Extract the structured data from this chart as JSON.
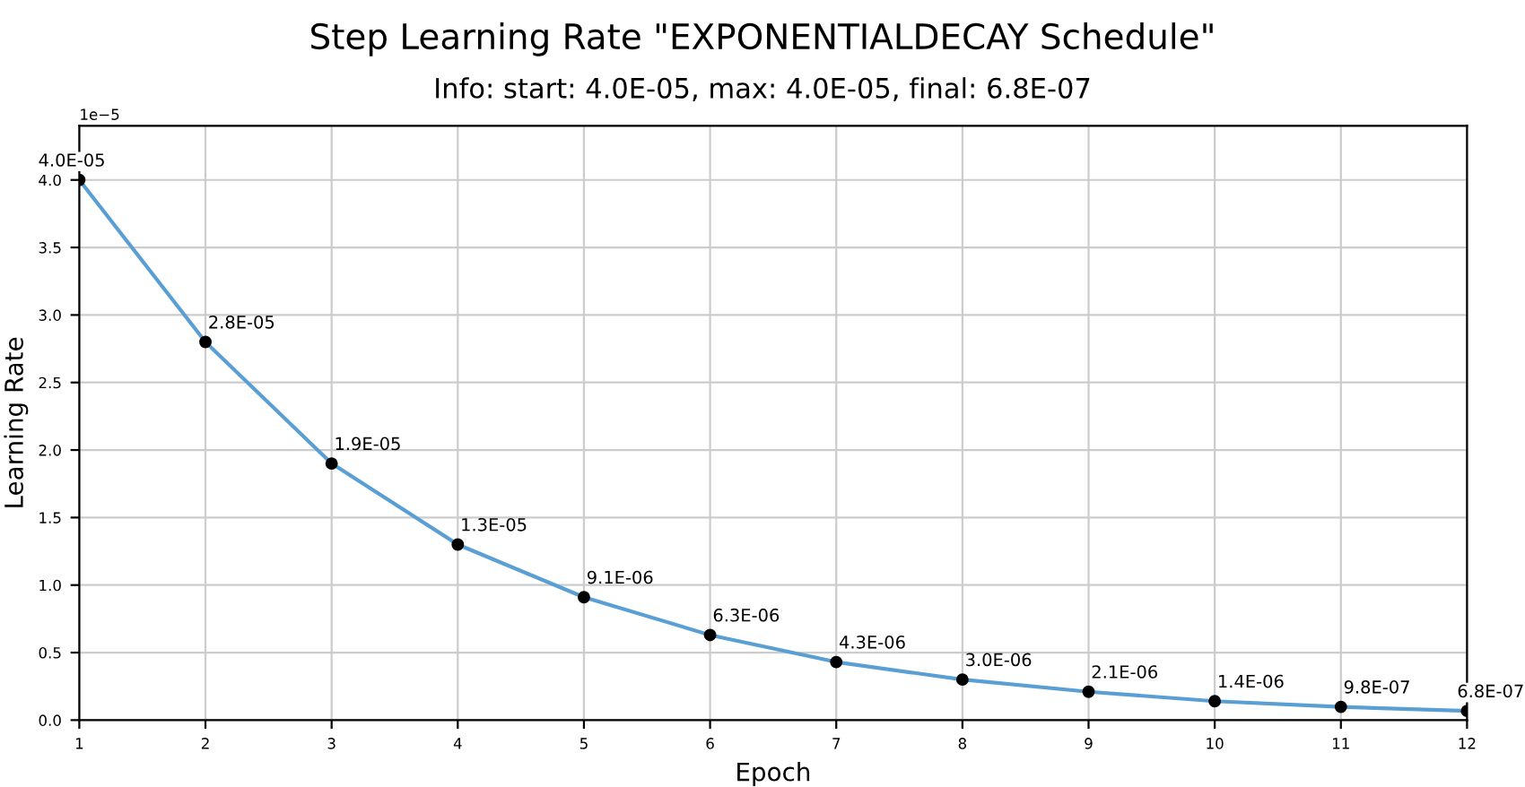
{
  "chart_data": {
    "type": "line",
    "title": "Step Learning Rate \"EXPONENTIALDECAY Schedule\"",
    "subtitle": "Info: start: 4.0E-05, max: 4.0E-05, final: 6.8E-07",
    "xlabel": "Epoch",
    "ylabel": "Learning Rate",
    "x": [
      1,
      2,
      3,
      4,
      5,
      6,
      7,
      8,
      9,
      10,
      11,
      12
    ],
    "series": [
      {
        "color": "#5a9fd4",
        "values": [
          4.0,
          2.8,
          1.9,
          1.3,
          0.91,
          0.63,
          0.43,
          0.3,
          0.21,
          0.14,
          0.098,
          0.068
        ]
      }
    ],
    "xlim": [
      1,
      12
    ],
    "xticks": [
      1,
      2,
      3,
      4,
      5,
      6,
      7,
      8,
      9,
      10,
      11,
      12
    ],
    "ylim": [
      0,
      4.4
    ],
    "yticks": [
      {
        "value": 0,
        "label": "0.0"
      },
      0.5,
      {
        "value": 1,
        "label": "1.0"
      },
      1.5,
      {
        "value": 2,
        "label": "2.0"
      },
      2.5,
      {
        "value": 3,
        "label": "3.0"
      },
      3.5,
      {
        "value": 4,
        "label": "4.0"
      }
    ],
    "annotations": [
      "1e−5",
      {
        "text": "4.0E-05",
        "x": 1,
        "y": 4.0
      },
      {
        "text": "2.8E-05",
        "x": 2,
        "y": 2.8
      },
      {
        "text": "1.9E-05",
        "x": 3,
        "y": 1.9
      },
      {
        "text": "1.3E-05",
        "x": 4,
        "y": 1.3
      },
      {
        "text": "9.1E-06",
        "x": 5,
        "y": 0.91
      },
      {
        "text": "6.3E-06",
        "x": 6,
        "y": 0.63
      },
      {
        "text": "4.3E-06",
        "x": 7,
        "y": 0.43
      },
      {
        "text": "3.0E-06",
        "x": 8,
        "y": 0.3
      },
      {
        "text": "2.1E-06",
        "x": 9,
        "y": 0.21
      },
      {
        "text": "1.4E-06",
        "x": 10,
        "y": 0.14
      },
      {
        "text": "9.8E-07",
        "x": 11,
        "y": 0.098
      },
      {
        "text": "6.8E-07",
        "x": 12,
        "y": 0.068
      }
    ],
    "grid": true,
    "marker": "circle",
    "line_style": "solid",
    "legend": false
  }
}
